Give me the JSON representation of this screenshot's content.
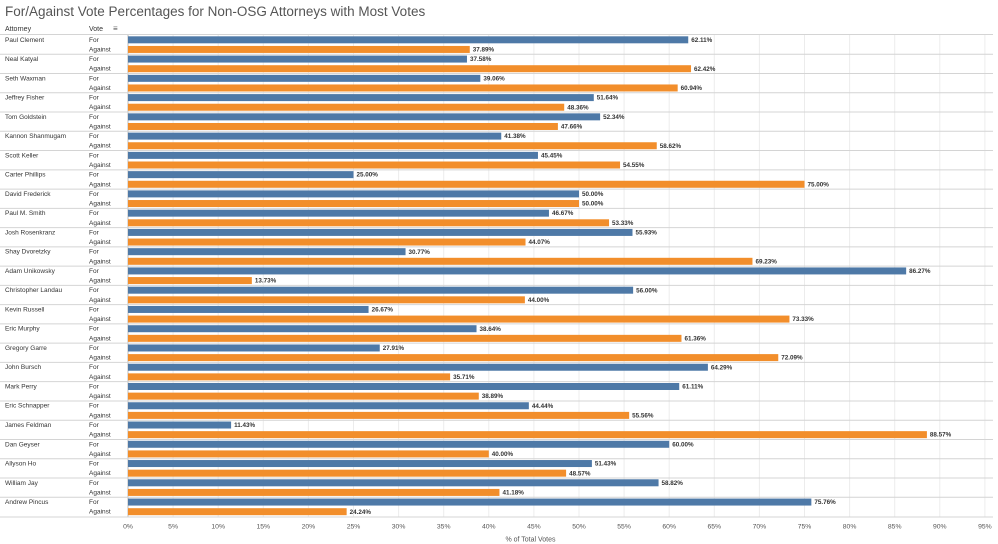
{
  "chart_data": {
    "type": "bar",
    "orientation": "horizontal",
    "title": "For/Against Vote Percentages for Non-OSG Attorneys with Most Votes",
    "row_headers": [
      "Attorney",
      "Vote"
    ],
    "xlabel": "% of Total Votes",
    "xlim": [
      0,
      95
    ],
    "x_ticks": [
      "0%",
      "5%",
      "10%",
      "15%",
      "20%",
      "25%",
      "30%",
      "35%",
      "40%",
      "45%",
      "50%",
      "55%",
      "60%",
      "65%",
      "70%",
      "75%",
      "80%",
      "85%",
      "90%",
      "95%"
    ],
    "vote_labels": [
      "For",
      "Against"
    ],
    "colors": {
      "For": "#4e79a7",
      "Against": "#f28e2b"
    },
    "attorneys": [
      {
        "name": "Paul Clement",
        "for": 62.11,
        "against": 37.89
      },
      {
        "name": "Neal Katyal",
        "for": 37.58,
        "against": 62.42
      },
      {
        "name": "Seth Waxman",
        "for": 39.06,
        "against": 60.94
      },
      {
        "name": "Jeffrey Fisher",
        "for": 51.64,
        "against": 48.36
      },
      {
        "name": "Tom Goldstein",
        "for": 52.34,
        "against": 47.66
      },
      {
        "name": "Kannon Shanmugam",
        "for": 41.38,
        "against": 58.62
      },
      {
        "name": "Scott Keller",
        "for": 45.45,
        "against": 54.55
      },
      {
        "name": "Carter Phillips",
        "for": 25.0,
        "against": 75.0
      },
      {
        "name": "David Frederick",
        "for": 50.0,
        "against": 50.0
      },
      {
        "name": "Paul M. Smith",
        "for": 46.67,
        "against": 53.33
      },
      {
        "name": "Josh Rosenkranz",
        "for": 55.93,
        "against": 44.07
      },
      {
        "name": "Shay Dvoretzky",
        "for": 30.77,
        "against": 69.23
      },
      {
        "name": "Adam Unikowsky",
        "for": 86.27,
        "against": 13.73
      },
      {
        "name": "Christopher Landau",
        "for": 56.0,
        "against": 44.0
      },
      {
        "name": "Kevin Russell",
        "for": 26.67,
        "against": 73.33
      },
      {
        "name": "Eric Murphy",
        "for": 38.64,
        "against": 61.36
      },
      {
        "name": "Gregory Garre",
        "for": 27.91,
        "against": 72.09
      },
      {
        "name": "John Bursch",
        "for": 64.29,
        "against": 35.71
      },
      {
        "name": "Mark Perry",
        "for": 61.11,
        "against": 38.89
      },
      {
        "name": "Eric Schnapper",
        "for": 44.44,
        "against": 55.56
      },
      {
        "name": "James Feldman",
        "for": 11.43,
        "against": 88.57
      },
      {
        "name": "Dan Geyser",
        "for": 60.0,
        "against": 40.0
      },
      {
        "name": "Allyson Ho",
        "for": 51.43,
        "against": 48.57
      },
      {
        "name": "William Jay",
        "for": 58.82,
        "against": 41.18
      },
      {
        "name": "Andrew Pincus",
        "for": 75.76,
        "against": 24.24
      }
    ]
  }
}
